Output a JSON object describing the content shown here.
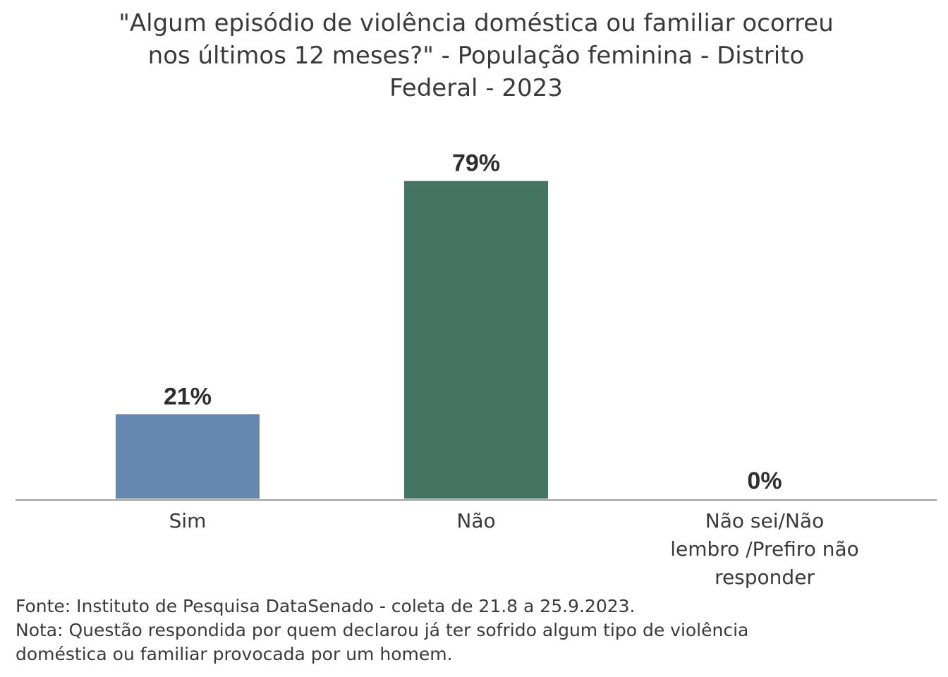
{
  "title_lines": [
    "\"Algum episódio de violência doméstica ou familiar ocorreu",
    "nos últimos 12 meses?\" - População feminina - Distrito",
    "Federal - 2023"
  ],
  "footer": {
    "source": "Fonte: Instituto de Pesquisa DataSenado - coleta de 21.8 a 25.9.2023.",
    "note_line1": "Nota: Questão respondida por quem declarou já ter sofrido algum tipo de violência",
    "note_line2": "doméstica ou familiar provocada por um homem."
  },
  "chart_data": {
    "type": "bar",
    "title": "\"Algum episódio de violência doméstica ou familiar ocorreu nos últimos 12 meses?\" - População feminina - Distrito Federal - 2023",
    "categories": [
      [
        "Sim"
      ],
      [
        "Não"
      ],
      [
        "Não sei/Não",
        "lembro /Prefiro não",
        "responder"
      ]
    ],
    "values": [
      21,
      79,
      0
    ],
    "data_labels": [
      "21%",
      "79%",
      "0%"
    ],
    "colors": [
      "#6688b0",
      "#447563",
      "#9a9a9a"
    ],
    "ylim": [
      0,
      80
    ],
    "xlabel": "",
    "ylabel": "",
    "grid": false,
    "legend": "none"
  }
}
